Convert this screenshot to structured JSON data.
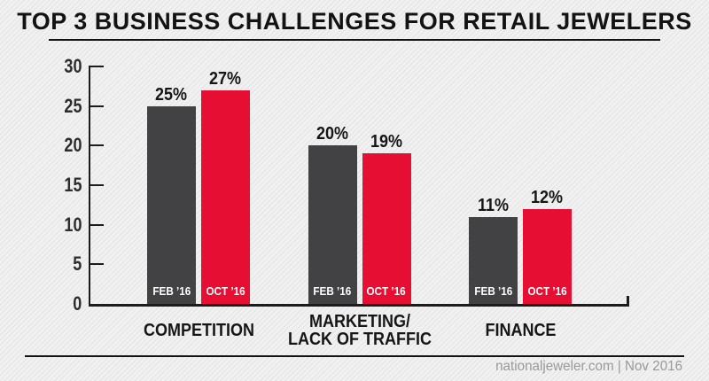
{
  "title": "TOP 3 BUSINESS CHALLENGES FOR RETAIL JEWELERS",
  "footer": {
    "source_credit": "nationaljeweler.com | Nov 2016"
  },
  "colors": {
    "background": "#eeeeee",
    "stripe": "#e3e3e3",
    "axis": "#1c1c1c",
    "heading_text": "#131313",
    "footer_text": "#999999",
    "feb_bar": "#424245",
    "oct_bar": "#e60e32",
    "in_bar_text": "#ffffff"
  },
  "chart_data": {
    "type": "bar",
    "title": "TOP 3 BUSINESS CHALLENGES FOR RETAIL JEWELERS",
    "unit": "%",
    "categories": [
      "COMPETITION",
      "MARKETING/\nLACK OF TRAFFIC",
      "FINANCE"
    ],
    "series": [
      {
        "name": "FEB ’16",
        "values": [
          25,
          20,
          11
        ],
        "color": "#424245"
      },
      {
        "name": "OCT ’16",
        "values": [
          27,
          19,
          12
        ],
        "color": "#e60e32"
      }
    ],
    "value_labels": [
      [
        "25%",
        "27%"
      ],
      [
        "20%",
        "19%"
      ],
      [
        "11%",
        "12%"
      ]
    ],
    "xlabel": "",
    "ylabel": "",
    "ylim": [
      0,
      30
    ],
    "yticks": [
      0,
      5,
      10,
      15,
      20,
      25,
      30
    ],
    "grid": false,
    "legend_position": "inside-bar-bottom"
  }
}
